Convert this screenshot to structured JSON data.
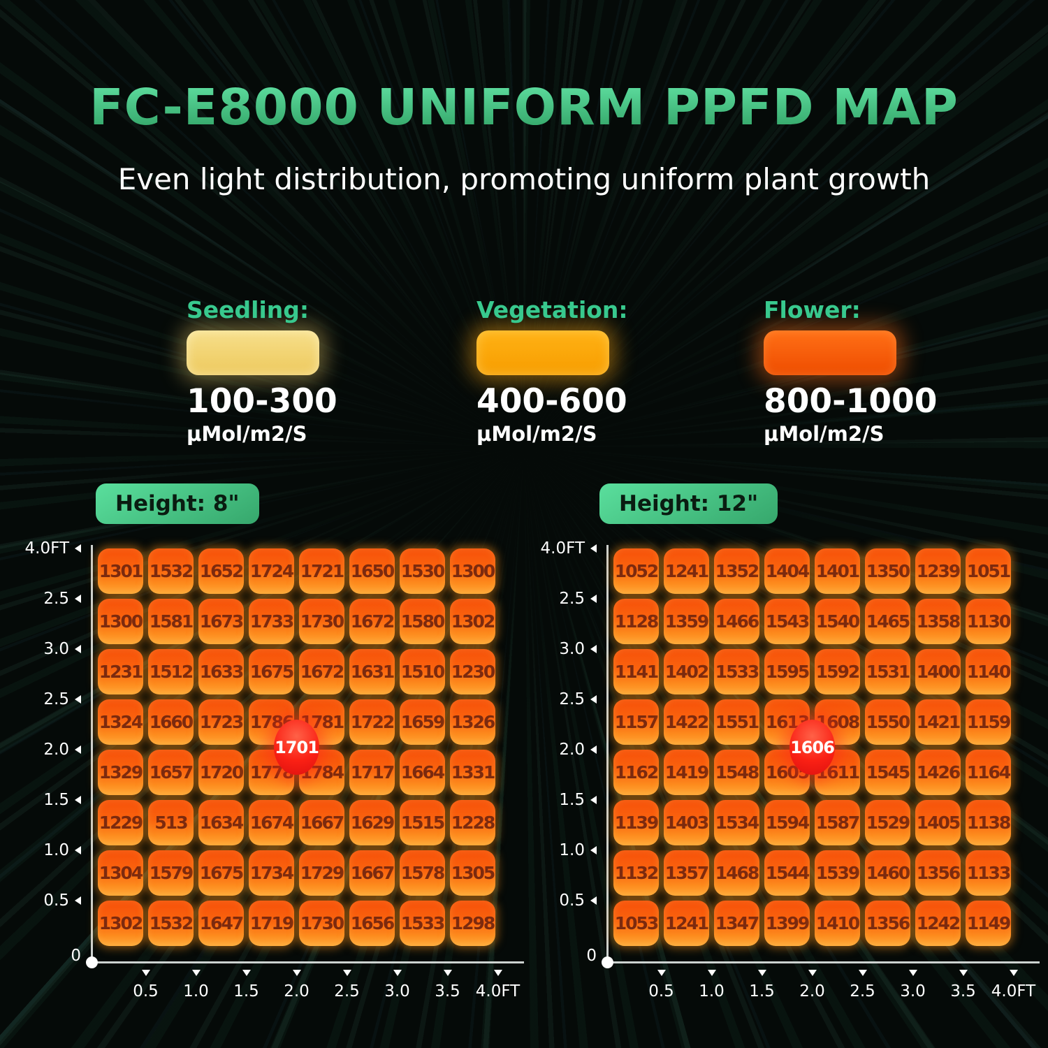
{
  "title": "FC-E8000 UNIFORM PPFD MAP",
  "subtitle": "Even light distribution, promoting uniform plant growth",
  "legend": [
    {
      "label": "Seedling:",
      "range": "100-300",
      "unit": "μMol/m2/S",
      "swatch_color": "#F0CE6B"
    },
    {
      "label": "Vegetation:",
      "range": "400-600",
      "unit": "μMol/m2/S",
      "swatch_color": "#FFA405"
    },
    {
      "label": "Flower:",
      "range": "800-1000",
      "unit": "μMol/m2/S",
      "swatch_color": "#FF5E07"
    }
  ],
  "colors": {
    "title_gradient_top": "#63E4A6",
    "title_gradient_bottom": "#2E9E61",
    "accent_green": "#38C98E",
    "height_pill_green": "#45C585",
    "cell_orange": "#FB660D",
    "cell_glow": "#FF9619",
    "cell_text": "#7C2A0E",
    "badge_red": "#F42116",
    "axis_gray": "#CDD2D0",
    "background": "#050A08"
  },
  "chart_data": [
    {
      "type": "heatmap",
      "title": "Height: 8\"",
      "center_label": "1701",
      "x_ticks": [
        "0.5",
        "1.0",
        "1.5",
        "2.0",
        "2.5",
        "3.0",
        "3.5",
        "4.0FT"
      ],
      "y_ticks": [
        "4.0FT",
        "2.5",
        "3.0",
        "2.5",
        "2.0",
        "1.5",
        "1.0",
        "0.5",
        "0"
      ],
      "values": [
        [
          1301,
          1532,
          1652,
          1724,
          1721,
          1650,
          1530,
          1300
        ],
        [
          1300,
          1581,
          1673,
          1733,
          1730,
          1672,
          1580,
          1302
        ],
        [
          1231,
          1512,
          1633,
          1675,
          1672,
          1631,
          1510,
          1230
        ],
        [
          1324,
          1660,
          1723,
          1786,
          1781,
          1722,
          1659,
          1326
        ],
        [
          1329,
          1657,
          1720,
          1778,
          1784,
          1717,
          1664,
          1331
        ],
        [
          1229,
          513,
          1634,
          1674,
          1667,
          1629,
          1515,
          1228
        ],
        [
          1304,
          1579,
          1675,
          1734,
          1729,
          1667,
          1578,
          1305
        ],
        [
          1302,
          1532,
          1647,
          1719,
          1730,
          1656,
          1533,
          1298
        ]
      ]
    },
    {
      "type": "heatmap",
      "title": "Height: 12\"",
      "center_label": "1606",
      "x_ticks": [
        "0.5",
        "1.0",
        "1.5",
        "2.0",
        "2.5",
        "3.0",
        "3.5",
        "4.0FT"
      ],
      "y_ticks": [
        "4.0FT",
        "2.5",
        "3.0",
        "2.5",
        "2.0",
        "1.5",
        "1.0",
        "0.5",
        "0"
      ],
      "values": [
        [
          1052,
          1241,
          1352,
          1404,
          1401,
          1350,
          1239,
          1051
        ],
        [
          1128,
          1359,
          1466,
          1543,
          1540,
          1465,
          1358,
          1130
        ],
        [
          1141,
          1402,
          1533,
          1595,
          1592,
          1531,
          1400,
          1140
        ],
        [
          1157,
          1422,
          1551,
          1613,
          1608,
          1550,
          1421,
          1159
        ],
        [
          1162,
          1419,
          1548,
          1605,
          1611,
          1545,
          1426,
          1164
        ],
        [
          1139,
          1403,
          1534,
          1594,
          1587,
          1529,
          1405,
          1138
        ],
        [
          1132,
          1357,
          1468,
          1544,
          1539,
          1460,
          1356,
          1133
        ],
        [
          1053,
          1241,
          1347,
          1399,
          1410,
          1356,
          1242,
          1149
        ]
      ]
    }
  ]
}
